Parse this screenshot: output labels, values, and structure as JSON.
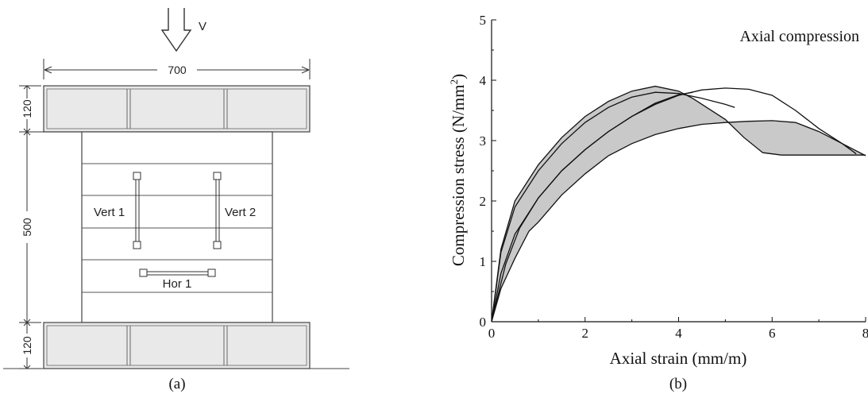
{
  "panel_a": {
    "caption": "(a)",
    "load_label": "V",
    "dim_width": "700",
    "dim_top_beam": "120",
    "dim_wall_height": "500",
    "dim_bottom_beam": "120",
    "sensor_vert1": "Vert 1",
    "sensor_vert2": "Vert 2",
    "sensor_hor1": "Hor 1"
  },
  "panel_b": {
    "caption": "(b)"
  },
  "chart_data": {
    "type": "line",
    "title": "",
    "annotation": "Axial compression",
    "xlabel": "Axial strain (mm/m)",
    "ylabel_main": "Compression stress (N/mm",
    "ylabel_sup": "2",
    "ylabel_end": ")",
    "xlim": [
      0,
      8
    ],
    "ylim": [
      0,
      5
    ],
    "xticks": [
      "0",
      "2",
      "4",
      "6",
      "8"
    ],
    "yticks": [
      "0",
      "1",
      "2",
      "3",
      "4",
      "5"
    ],
    "grid": false,
    "envelope": {
      "upper": [
        [
          0,
          0
        ],
        [
          0.2,
          1.2
        ],
        [
          0.5,
          2.0
        ],
        [
          1,
          2.6
        ],
        [
          1.5,
          3.05
        ],
        [
          2,
          3.4
        ],
        [
          2.5,
          3.65
        ],
        [
          3,
          3.82
        ],
        [
          3.5,
          3.9
        ],
        [
          4,
          3.82
        ],
        [
          4.3,
          3.7
        ],
        [
          4.6,
          3.55
        ],
        [
          5,
          3.35
        ],
        [
          5.4,
          3.05
        ],
        [
          5.8,
          2.8
        ],
        [
          6.2,
          2.76
        ],
        [
          6.5,
          2.76
        ],
        [
          7,
          2.76
        ],
        [
          7.5,
          2.76
        ],
        [
          8,
          2.76
        ]
      ],
      "lower": [
        [
          0,
          0
        ],
        [
          0.2,
          0.55
        ],
        [
          0.5,
          1.05
        ],
        [
          0.8,
          1.5
        ],
        [
          1,
          1.65
        ],
        [
          1.5,
          2.1
        ],
        [
          2,
          2.45
        ],
        [
          2.5,
          2.75
        ],
        [
          3,
          2.95
        ],
        [
          3.5,
          3.1
        ],
        [
          4,
          3.2
        ],
        [
          4.5,
          3.27
        ],
        [
          5,
          3.3
        ],
        [
          5.5,
          3.32
        ],
        [
          6,
          3.33
        ],
        [
          6.5,
          3.3
        ],
        [
          7,
          3.15
        ],
        [
          7.5,
          2.95
        ],
        [
          8,
          2.75
        ]
      ]
    },
    "series": [
      {
        "points": [
          [
            0,
            0
          ],
          [
            0.2,
            1.15
          ],
          [
            0.5,
            1.9
          ],
          [
            1,
            2.5
          ],
          [
            1.5,
            2.95
          ],
          [
            2,
            3.3
          ],
          [
            2.5,
            3.55
          ],
          [
            3,
            3.72
          ],
          [
            3.5,
            3.8
          ],
          [
            4,
            3.78
          ],
          [
            4.5,
            3.7
          ],
          [
            5,
            3.6
          ],
          [
            5.2,
            3.55
          ]
        ]
      },
      {
        "points": [
          [
            0,
            0
          ],
          [
            0.2,
            0.8
          ],
          [
            0.5,
            1.45
          ],
          [
            1,
            2.05
          ],
          [
            1.5,
            2.5
          ],
          [
            2,
            2.85
          ],
          [
            2.5,
            3.15
          ],
          [
            3,
            3.4
          ],
          [
            3.5,
            3.6
          ],
          [
            4,
            3.75
          ],
          [
            4.5,
            3.84
          ],
          [
            5,
            3.87
          ],
          [
            5.5,
            3.85
          ],
          [
            6,
            3.75
          ],
          [
            6.5,
            3.5
          ],
          [
            7,
            3.2
          ],
          [
            7.5,
            2.95
          ],
          [
            7.8,
            2.78
          ]
        ]
      },
      {
        "points": [
          [
            0,
            0
          ],
          [
            0.3,
            0.95
          ],
          [
            0.6,
            1.55
          ],
          [
            1,
            2.05
          ],
          [
            1.5,
            2.5
          ],
          [
            2,
            2.85
          ],
          [
            2.5,
            3.15
          ],
          [
            3,
            3.4
          ],
          [
            3.5,
            3.62
          ],
          [
            4,
            3.76
          ],
          [
            4.3,
            3.8
          ]
        ]
      }
    ]
  }
}
